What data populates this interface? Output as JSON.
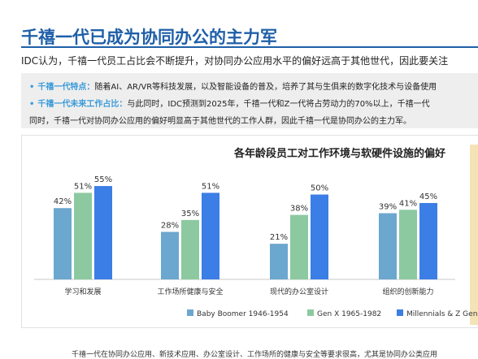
{
  "page": {
    "title": "千禧一代已成为协同办公的主力军",
    "subtitle": "IDC认为，千禧一代员工占比会不断提升，对协同办公应用水平的偏好远高于其他世代，因此要关注",
    "info": [
      {
        "label": "千禧一代特点：",
        "text": "随着AI、AR/VR等科技发展，以及智能设备的普及，培养了其与生俱来的数字化技术与设备使用"
      },
      {
        "label": "千禧一代未来工作占比：",
        "text": "与此同时，IDC预测到2025年，千禧一代和Z一代将占劳动力的70%以上，千禧一代"
      },
      {
        "label": "",
        "text": "同时，千禧一代对协同办公应用的偏好明显高于其他世代的工作人群，因此千禧一代是协同办公的主力军。"
      }
    ],
    "footer": "千禧一代在协同办公应用、新技术应用、办公室设计、工作场所的健康与安全等要求很高，尤其是协同办公类应用"
  },
  "chart_data": {
    "type": "bar",
    "title": "各年龄段员工对工作环境与软硬件设施的偏好",
    "categories": [
      "学习和发展",
      "工作场所健康与安全",
      "现代的办公室设计",
      "组织的创新能力"
    ],
    "series": [
      {
        "name": "Baby Boomer 1946-1954",
        "values": [
          42,
          28,
          21,
          39
        ],
        "color": "#6ba7cf"
      },
      {
        "name": "Gen X 1965-1982",
        "values": [
          51,
          35,
          38,
          41
        ],
        "color": "#8cc9a0"
      },
      {
        "name": "Millennials & Z Gen",
        "values": [
          55,
          51,
          50,
          45
        ],
        "color": "#3b7ee6"
      }
    ],
    "value_suffix": "%",
    "ylim": [
      0,
      70
    ],
    "grid": false,
    "legend": "bottom"
  }
}
